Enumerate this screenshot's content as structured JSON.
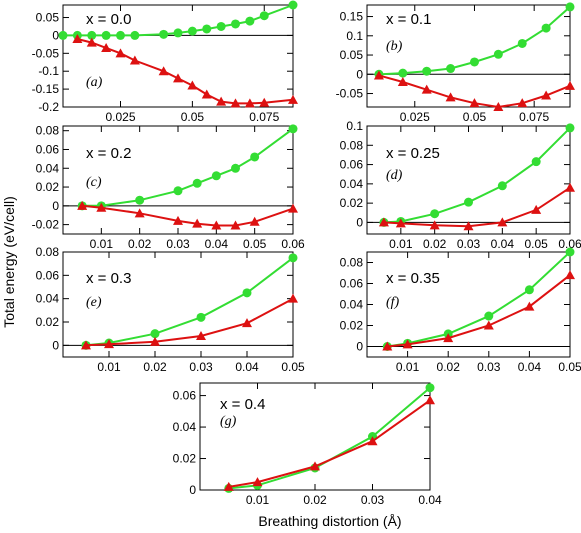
{
  "figure": {
    "xlabel": "Breathing distortion (Å)",
    "ylabel": "Total energy (eV/cell)",
    "colors": {
      "series_1": "#33dd33",
      "series_2": "#dd1111",
      "axes": "#000000"
    }
  },
  "chart_data": [
    {
      "type": "line",
      "label": "x = 0.0",
      "tag": "(a)",
      "xlim": [
        0.005,
        0.085
      ],
      "ylim": [
        -0.2,
        0.085
      ],
      "xticks": [
        0.025,
        0.05,
        0.075
      ],
      "xtick_labels": [
        "0.025",
        "0.05",
        "0.075"
      ],
      "yticks": [
        -0.2,
        -0.15,
        -0.1,
        -0.05,
        0,
        0.05
      ],
      "ytick_labels": [
        "-0.2",
        "-0.15",
        "-0.1",
        "-0.05",
        "0",
        "0.05"
      ],
      "series": [
        {
          "marker": "circle",
          "color": "#33dd33",
          "x": [
            0.005,
            0.01,
            0.015,
            0.02,
            0.025,
            0.03,
            0.04,
            0.045,
            0.05,
            0.055,
            0.06,
            0.065,
            0.07,
            0.075,
            0.085
          ],
          "y": [
            0.0,
            0.0,
            0.0,
            0.0,
            0.0,
            0.0,
            0.003,
            0.007,
            0.012,
            0.018,
            0.025,
            0.032,
            0.04,
            0.055,
            0.085
          ]
        },
        {
          "marker": "triangle",
          "color": "#dd1111",
          "x": [
            0.01,
            0.015,
            0.02,
            0.025,
            0.03,
            0.04,
            0.045,
            0.05,
            0.055,
            0.06,
            0.065,
            0.07,
            0.075,
            0.085
          ],
          "y": [
            -0.01,
            -0.02,
            -0.035,
            -0.05,
            -0.07,
            -0.1,
            -0.12,
            -0.14,
            -0.165,
            -0.185,
            -0.19,
            -0.19,
            -0.188,
            -0.18
          ]
        }
      ]
    },
    {
      "type": "line",
      "label": "x = 0.1",
      "tag": "(b)",
      "xlim": [
        0.005,
        0.09
      ],
      "ylim": [
        -0.085,
        0.18
      ],
      "xticks": [
        0.025,
        0.05,
        0.075
      ],
      "xtick_labels": [
        "0.025",
        "0.05",
        "0.075"
      ],
      "yticks": [
        -0.05,
        0,
        0.05,
        0.1,
        0.15
      ],
      "ytick_labels": [
        "-0.05",
        "0",
        "0.05",
        "0.1",
        "0.15"
      ],
      "series": [
        {
          "marker": "circle",
          "color": "#33dd33",
          "x": [
            0.01,
            0.02,
            0.03,
            0.04,
            0.05,
            0.06,
            0.07,
            0.08,
            0.09
          ],
          "y": [
            0.0,
            0.003,
            0.008,
            0.015,
            0.032,
            0.052,
            0.08,
            0.12,
            0.175
          ]
        },
        {
          "marker": "triangle",
          "color": "#dd1111",
          "x": [
            0.01,
            0.02,
            0.03,
            0.04,
            0.05,
            0.06,
            0.07,
            0.08,
            0.09
          ],
          "y": [
            -0.003,
            -0.02,
            -0.04,
            -0.06,
            -0.075,
            -0.085,
            -0.075,
            -0.055,
            -0.03
          ]
        }
      ]
    },
    {
      "type": "line",
      "label": "x = 0.2",
      "tag": "(c)",
      "xlim": [
        0.0,
        0.06
      ],
      "ylim": [
        -0.03,
        0.085
      ],
      "xticks": [
        0.01,
        0.02,
        0.03,
        0.04,
        0.05,
        0.06
      ],
      "xtick_labels": [
        "0.01",
        "0.02",
        "0.03",
        "0.04",
        "0.05",
        "0.06"
      ],
      "yticks": [
        -0.02,
        0,
        0.02,
        0.04,
        0.06,
        0.08
      ],
      "ytick_labels": [
        "-0.02",
        "0",
        "0.02",
        "0.04",
        "0.06",
        "0.08"
      ],
      "series": [
        {
          "marker": "circle",
          "color": "#33dd33",
          "x": [
            0.005,
            0.01,
            0.02,
            0.03,
            0.035,
            0.04,
            0.045,
            0.05,
            0.06
          ],
          "y": [
            0.0,
            0.0,
            0.006,
            0.016,
            0.024,
            0.032,
            0.04,
            0.052,
            0.082
          ]
        },
        {
          "marker": "triangle",
          "color": "#dd1111",
          "x": [
            0.005,
            0.01,
            0.02,
            0.03,
            0.035,
            0.04,
            0.045,
            0.05,
            0.06
          ],
          "y": [
            0.0,
            -0.002,
            -0.008,
            -0.016,
            -0.019,
            -0.021,
            -0.021,
            -0.017,
            -0.003
          ]
        }
      ]
    },
    {
      "type": "line",
      "label": "x = 0.25",
      "tag": "(d)",
      "xlim": [
        0.0,
        0.06
      ],
      "ylim": [
        -0.012,
        0.1
      ],
      "xticks": [
        0.01,
        0.02,
        0.03,
        0.04,
        0.05,
        0.06
      ],
      "xtick_labels": [
        "0.01",
        "0.02",
        "0.03",
        "0.04",
        "0.05",
        "0.06"
      ],
      "yticks": [
        0,
        0.02,
        0.04,
        0.06,
        0.08,
        0.1
      ],
      "ytick_labels": [
        "0",
        "0.02",
        "0.04",
        "0.06",
        "0.08",
        "0.1"
      ],
      "series": [
        {
          "marker": "circle",
          "color": "#33dd33",
          "x": [
            0.005,
            0.01,
            0.02,
            0.03,
            0.04,
            0.05,
            0.06
          ],
          "y": [
            0.0,
            0.001,
            0.009,
            0.021,
            0.038,
            0.063,
            0.098
          ]
        },
        {
          "marker": "triangle",
          "color": "#dd1111",
          "x": [
            0.005,
            0.01,
            0.02,
            0.03,
            0.04,
            0.05,
            0.06
          ],
          "y": [
            0.0,
            -0.001,
            -0.003,
            -0.004,
            0.0,
            0.013,
            0.036
          ]
        }
      ]
    },
    {
      "type": "line",
      "label": "x = 0.3",
      "tag": "(e)",
      "xlim": [
        0.0,
        0.05
      ],
      "ylim": [
        -0.01,
        0.08
      ],
      "xticks": [
        0.01,
        0.02,
        0.03,
        0.04,
        0.05
      ],
      "xtick_labels": [
        "0.01",
        "0.02",
        "0.03",
        "0.04",
        "0.05"
      ],
      "yticks": [
        0,
        0.02,
        0.04,
        0.06,
        0.08
      ],
      "ytick_labels": [
        "0",
        "0.02",
        "0.04",
        "0.06",
        "0.08"
      ],
      "series": [
        {
          "marker": "circle",
          "color": "#33dd33",
          "x": [
            0.005,
            0.01,
            0.02,
            0.03,
            0.04,
            0.05
          ],
          "y": [
            0.0,
            0.002,
            0.01,
            0.024,
            0.045,
            0.075
          ]
        },
        {
          "marker": "triangle",
          "color": "#dd1111",
          "x": [
            0.005,
            0.01,
            0.02,
            0.03,
            0.04,
            0.05
          ],
          "y": [
            0.0,
            0.001,
            0.003,
            0.008,
            0.019,
            0.04
          ]
        }
      ]
    },
    {
      "type": "line",
      "label": "x = 0.35",
      "tag": "(f)",
      "xlim": [
        0.0,
        0.05
      ],
      "ylim": [
        -0.01,
        0.09
      ],
      "xticks": [
        0.01,
        0.02,
        0.03,
        0.04,
        0.05
      ],
      "xtick_labels": [
        "0.01",
        "0.02",
        "0.03",
        "0.04",
        "0.05"
      ],
      "yticks": [
        0,
        0.02,
        0.04,
        0.06,
        0.08
      ],
      "ytick_labels": [
        "0",
        "0.02",
        "0.04",
        "0.06",
        "0.08"
      ],
      "series": [
        {
          "marker": "circle",
          "color": "#33dd33",
          "x": [
            0.005,
            0.01,
            0.02,
            0.03,
            0.04,
            0.05
          ],
          "y": [
            0.0,
            0.003,
            0.012,
            0.029,
            0.054,
            0.09
          ]
        },
        {
          "marker": "triangle",
          "color": "#dd1111",
          "x": [
            0.005,
            0.01,
            0.02,
            0.03,
            0.04,
            0.05
          ],
          "y": [
            0.0,
            0.002,
            0.008,
            0.02,
            0.038,
            0.068
          ]
        }
      ]
    },
    {
      "type": "line",
      "label": "x = 0.4",
      "tag": "(g)",
      "xlim": [
        0.0,
        0.04
      ],
      "ylim": [
        0.0,
        0.068
      ],
      "xticks": [
        0.01,
        0.02,
        0.03,
        0.04
      ],
      "xtick_labels": [
        "0.01",
        "0.02",
        "0.03",
        "0.04"
      ],
      "yticks": [
        0,
        0.02,
        0.04,
        0.06
      ],
      "ytick_labels": [
        "0",
        "0.02",
        "0.04",
        "0.06"
      ],
      "series": [
        {
          "marker": "circle",
          "color": "#33dd33",
          "x": [
            0.005,
            0.01,
            0.02,
            0.03,
            0.04
          ],
          "y": [
            0.001,
            0.003,
            0.014,
            0.034,
            0.065
          ]
        },
        {
          "marker": "triangle",
          "color": "#dd1111",
          "x": [
            0.005,
            0.01,
            0.02,
            0.03,
            0.04
          ],
          "y": [
            0.002,
            0.005,
            0.015,
            0.031,
            0.057
          ]
        }
      ]
    }
  ]
}
